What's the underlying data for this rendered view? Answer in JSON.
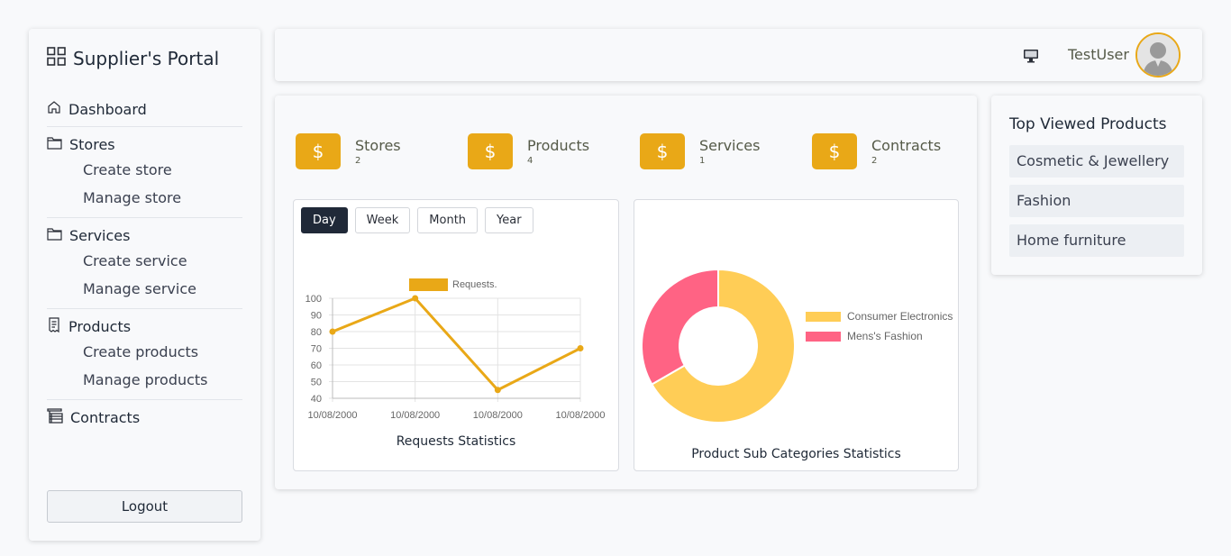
{
  "brand": {
    "title": "Supplier's Portal",
    "icon": "grid-icon"
  },
  "nav": {
    "dashboard": "Dashboard",
    "stores": {
      "label": "Stores",
      "items": [
        "Create store",
        "Manage store"
      ]
    },
    "services": {
      "label": "Services",
      "items": [
        "Create service",
        "Manage service"
      ]
    },
    "products": {
      "label": "Products",
      "items": [
        "Create products",
        "Manage products"
      ]
    },
    "contracts": "Contracts"
  },
  "logout_label": "Logout",
  "header": {
    "username": "TestUser"
  },
  "stats": [
    {
      "label": "Stores",
      "count": "2",
      "icon": "$"
    },
    {
      "label": "Products",
      "count": "4",
      "icon": "$"
    },
    {
      "label": "Services",
      "count": "1",
      "icon": "$"
    },
    {
      "label": "Contracts",
      "count": "2",
      "icon": "$"
    }
  ],
  "tabs": [
    "Day",
    "Week",
    "Month",
    "Year"
  ],
  "active_tab": "Day",
  "requests_chart": {
    "caption": "Requests Statistics"
  },
  "pie_chart": {
    "caption": "Product Sub Categories Statistics"
  },
  "top_viewed": {
    "title": "Top Viewed Products",
    "items": [
      "Cosmetic & Jewellery",
      "Fashion",
      "Home furniture"
    ]
  },
  "colors": {
    "accent": "#e9a817",
    "yellow": "#ffcd56",
    "pink": "#ff6384",
    "dark": "#202938"
  },
  "chart_data": [
    {
      "type": "line",
      "categories": [
        "10/08/2000",
        "10/08/2000",
        "10/08/2000",
        "10/08/2000"
      ],
      "series": [
        {
          "name": "Requests.",
          "values": [
            80,
            100,
            45,
            70
          ]
        }
      ],
      "ylim": [
        40,
        100
      ],
      "yticks": [
        100,
        90,
        80,
        70,
        60,
        50,
        40
      ],
      "grid": true,
      "legend": "top"
    },
    {
      "type": "pie",
      "labels": [
        "Consumer Electronics",
        "Mens's Fashion"
      ],
      "values": [
        2,
        1
      ],
      "legend": "right"
    }
  ]
}
